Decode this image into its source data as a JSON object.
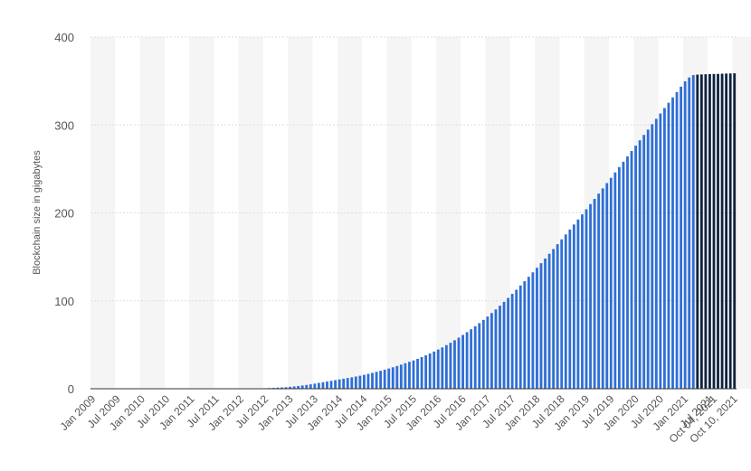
{
  "chart_data": {
    "type": "bar",
    "ylabel": "Blockchain size in gigabytes",
    "ylim": [
      0,
      400
    ],
    "yticks": [
      0,
      100,
      200,
      300,
      400
    ],
    "grid": true,
    "x_tick_labels": [
      "Jan 2009",
      "Jul 2009",
      "Jan 2010",
      "Jul 2010",
      "Jan 2011",
      "Jul 2011",
      "Jan 2012",
      "Jul 2012",
      "Jan 2013",
      "Jul 2013",
      "Jan 2014",
      "Jul 2014",
      "Jan 2015",
      "Jul 2015",
      "Jan 2016",
      "Jul 2016",
      "Jan 2017",
      "Jul 2017",
      "Jan 2018",
      "Jul 2018",
      "Jan 2019",
      "Jul 2019",
      "Jan 2020",
      "Jul 2020",
      "Jan 2021",
      "Jul 2021",
      "Oct 04, 2021",
      "Oct 10, 2021"
    ],
    "colors": {
      "monthly": "#2f6fd6",
      "weekly": "#0f2340",
      "grid": "#dddddd",
      "band": "#f5f5f5"
    },
    "series": [
      {
        "period": "monthly",
        "start": "Jan 2009",
        "values": [
          0,
          0,
          0,
          0,
          0,
          0,
          0,
          0,
          0,
          0,
          0,
          0,
          0,
          0,
          0,
          0,
          0,
          0,
          0,
          0,
          0,
          0,
          0,
          0,
          0,
          0,
          0,
          0,
          0,
          0,
          0,
          0,
          0,
          0,
          0,
          0,
          0.1,
          0.1,
          0.2,
          0.2,
          0.3,
          0.4,
          0.6,
          0.8,
          1.0,
          1.3,
          1.5,
          1.8,
          2.2,
          2.6,
          3.1,
          3.7,
          4.3,
          5,
          5.8,
          6.6,
          7.4,
          8.2,
          9,
          9.8,
          10.6,
          11.4,
          12.2,
          13,
          13.9,
          14.8,
          15.8,
          16.9,
          18,
          19.2,
          20.4,
          21.7,
          23,
          24.4,
          25.9,
          27.4,
          29,
          30.6,
          32.2,
          34,
          36,
          38,
          40.1,
          42.3,
          44.6,
          47,
          49.6,
          52.3,
          55.1,
          58.1,
          61.2,
          64.4,
          67.7,
          71.1,
          74.6,
          78.3,
          82.1,
          86.1,
          90.2,
          94.4,
          98.8,
          103.3,
          107.9,
          112.6,
          117.4,
          122.3,
          127.3,
          132.4,
          137.6,
          142.8,
          148.1,
          153.5,
          158.9,
          164.4,
          169.9,
          175.5,
          181.1,
          186.8,
          192.5,
          198.3,
          204.1,
          210,
          215.9,
          221.9,
          227.9,
          233.9,
          239.9,
          246,
          252.1,
          258.2,
          264.3,
          270.4,
          276.5,
          282.6,
          288.7,
          294.8,
          300.9,
          307,
          313.1,
          319.2,
          325.3,
          331.4,
          337.5,
          343.6,
          349.7,
          354,
          356.8
        ]
      },
      {
        "period": "weekly",
        "start": "Sep 2021",
        "values": [
          357.3,
          357.5,
          357.7,
          357.9,
          358.0,
          358.1,
          358.3,
          358.5,
          358.6,
          358.8
        ]
      }
    ]
  }
}
